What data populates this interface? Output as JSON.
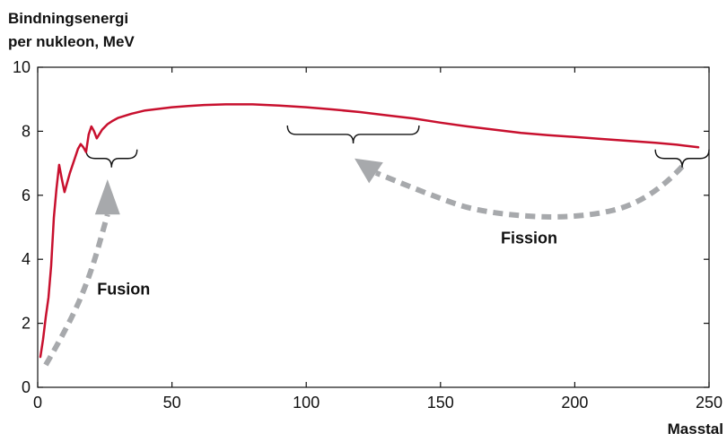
{
  "chart_data": {
    "type": "line",
    "ylabel_lines": [
      "Bindningsenergi",
      "per nukleon, MeV"
    ],
    "xlabel": "Masstal",
    "xlim": [
      0,
      250
    ],
    "ylim": [
      0,
      10
    ],
    "x_ticks": [
      0,
      50,
      100,
      150,
      200,
      250
    ],
    "y_ticks": [
      0,
      2,
      4,
      6,
      8,
      10
    ],
    "x_tick_labels": [
      "0",
      "50",
      "100",
      "150",
      "200",
      "250"
    ],
    "y_tick_labels": [
      "0",
      "2",
      "4",
      "6",
      "8",
      "10"
    ],
    "grid": false,
    "series": [
      {
        "color": "#c8102e",
        "x": [
          1,
          2,
          3,
          4,
          5,
          6,
          7,
          8,
          9,
          10,
          12,
          14,
          15,
          16,
          17,
          18,
          19,
          20,
          21,
          22,
          24,
          26,
          28,
          30,
          35,
          40,
          50,
          56,
          62,
          70,
          80,
          90,
          100,
          110,
          120,
          130,
          140,
          150,
          160,
          170,
          180,
          190,
          200,
          210,
          220,
          230,
          238,
          246
        ],
        "y": [
          0.95,
          1.5,
          2.2,
          2.8,
          3.8,
          5.3,
          6.2,
          6.95,
          6.5,
          6.1,
          6.7,
          7.2,
          7.45,
          7.6,
          7.5,
          7.35,
          7.9,
          8.15,
          8.0,
          7.78,
          8.05,
          8.22,
          8.33,
          8.42,
          8.55,
          8.65,
          8.75,
          8.79,
          8.82,
          8.84,
          8.84,
          8.8,
          8.75,
          8.68,
          8.6,
          8.5,
          8.4,
          8.27,
          8.15,
          8.05,
          7.95,
          7.88,
          7.82,
          7.76,
          7.7,
          7.64,
          7.58,
          7.5
        ]
      }
    ],
    "annotations": [
      {
        "text": "Fusion",
        "x": 32,
        "y": 2.9
      },
      {
        "text": "Fission",
        "x": 183,
        "y": 4.5
      }
    ],
    "braces": [
      {
        "x_from": 18,
        "x_to": 37,
        "y": 7.15
      },
      {
        "x_from": 93,
        "x_to": 142,
        "y": 7.9
      },
      {
        "x_from": 230,
        "x_to": 250,
        "y": 7.15
      }
    ],
    "arrows": [
      {
        "color": "#a7a9ac",
        "path": [
          [
            3,
            0.7
          ],
          [
            12,
            2.0
          ],
          [
            20,
            3.6
          ],
          [
            26,
            5.4
          ]
        ],
        "head": [
          26,
          6.5
        ]
      },
      {
        "color": "#a7a9ac",
        "path": [
          [
            240,
            6.9
          ],
          [
            228,
            5.8
          ],
          [
            200,
            5.25
          ],
          [
            165,
            5.45
          ],
          [
            145,
            6.05
          ],
          [
            126,
            6.7
          ]
        ],
        "head": [
          118,
          7.15
        ]
      }
    ]
  }
}
